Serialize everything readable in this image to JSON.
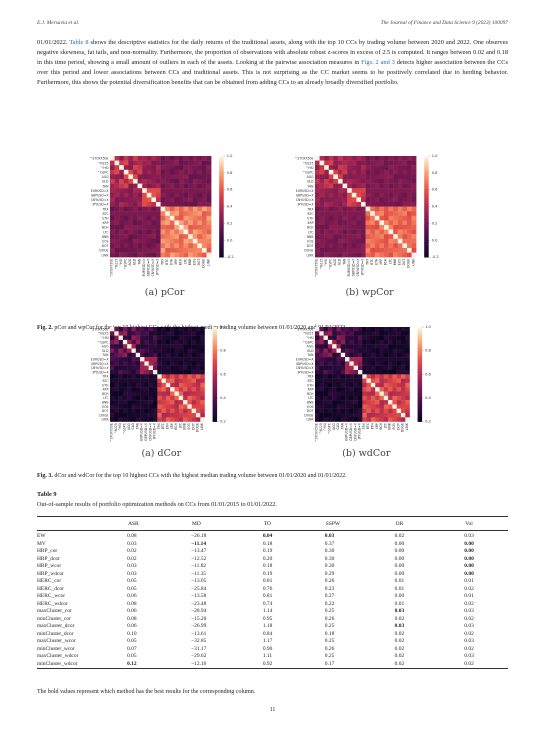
{
  "header": {
    "left": "E.J. Mersavia et al.",
    "right": "The Journal of Finance and Data Science 9 (2023) 100097"
  },
  "paragraph": {
    "p1": "01/01/2022. ",
    "link1": "Table 8",
    "p2": " shows the descriptive statistics for the daily returns of the traditional assets, along with the top 10 CCs by trading volume between 2020 and 2022. One observes negative skewness, fat tails, and non-normality. Furthermore, the proportion of observations with absolute robust z-scores in excess of 2.5 is computed. It ranges between 0.02 and 0.18 in this time period, showing a small amount of outliers in each of the assets. Looking at the pairwise association measures in ",
    "link2": "Figs. 2 and 3",
    "p3": " detects higher association between the CCs over this period and lower associations between CCs and traditional assets. This is not surprising as the CC market seems to be positively correlated due to herding behavior. Furthermore, this shows the potential diversification benefits that can be obtained from adding CCs to an already broadly diversified portfolio."
  },
  "heatmap_labels": [
    "^STOXX50E",
    "^N225",
    "^HSI",
    "^GSPC",
    "AGG",
    "GLD",
    "TAN",
    "EURUSD=X",
    "GBPUSD=X",
    "CNYUSD=X",
    "JPYUSD=X",
    "TRX",
    "BTC",
    "ETH",
    "XRP",
    "BCH",
    "LTC",
    "BNB",
    "EOS",
    "DOT",
    "DOGE",
    "LINK"
  ],
  "colorbars": {
    "pcor": [
      "1.0",
      "0.8",
      "0.6",
      "0.4",
      "0.2",
      "0.0",
      "-0.2"
    ],
    "wpcor": [
      "1.0",
      "0.8",
      "0.6",
      "0.4",
      "0.2",
      "0.0",
      "-0.2"
    ],
    "dcor": [
      "1.0",
      "0.8",
      "0.6",
      "0.4",
      "0.2"
    ],
    "wdcor": [
      "1.0",
      "0.8",
      "0.6",
      "0.4",
      "0.2"
    ]
  },
  "figures": {
    "fig2": {
      "panel_a": "(a) pCor",
      "panel_b": "(b) wpCor",
      "caption_label": "Fig. 2.",
      "caption_text": " pCor and wpCor for the top 10 highest CCs with the highest median trading volume between 01/01/2020 and 01/01/2022."
    },
    "fig3": {
      "panel_a": "(a) dCor",
      "panel_b": "(b) wdCor",
      "caption_label": "Fig. 3.",
      "caption_text": " dCor and wdCor for the top 10 highest CCs with the highest median trading volume between 01/01/2020 and 01/01/2022."
    }
  },
  "table": {
    "label": "Table 9",
    "description": "Out-of-sample results of portfolio optimization methods on CCs from 01/01/2015 to 01/01/2022.",
    "columns": [
      "",
      "ASR",
      "MD",
      "TO",
      "SSPW",
      "OR",
      "Vol"
    ],
    "rows": [
      [
        "EW",
        "0.08",
        "−26.18",
        "0.04",
        "0.03",
        "0.02",
        "0.03"
      ],
      [
        "MV",
        "0.03",
        "−11.14",
        "0.18",
        "0.37",
        "0.00",
        "0.00"
      ],
      [
        "HRP_cor",
        "0.02",
        "−13.47",
        "0.19",
        "0.30",
        "0.00",
        "0.00"
      ],
      [
        "HRP_dcor",
        "0.02",
        "−12.52",
        "0.20",
        "0.30",
        "0.00",
        "0.00"
      ],
      [
        "HRP_wcor",
        "0.03",
        "−11.82",
        "0.18",
        "0.30",
        "0.00",
        "0.00"
      ],
      [
        "HRP_wdcor",
        "0.03",
        "−11.35",
        "0.19",
        "0.29",
        "0.00",
        "0.00"
      ],
      [
        "HERC_cor",
        "0.05",
        "−13.05",
        "0.81",
        "0.26",
        "0.01",
        "0.01"
      ],
      [
        "HERC_dcor",
        "0.05",
        "−25.84",
        "0.76",
        "0.23",
        "0.01",
        "0.02"
      ],
      [
        "HERC_wcor",
        "0.06",
        "−13.58",
        "0.81",
        "0.27",
        "0.00",
        "0.01"
      ],
      [
        "HERC_wdcor",
        "0.08",
        "−23.48",
        "0.74",
        "0.22",
        "0.01",
        "0.02"
      ],
      [
        "maxCluster_cor",
        "0.06",
        "−28.94",
        "1.14",
        "0.25",
        "0.03",
        "0.03"
      ],
      [
        "minCluster_cor",
        "0.08",
        "−15.20",
        "0.95",
        "0.26",
        "0.02",
        "0.02"
      ],
      [
        "maxCluster_dcor",
        "0.06",
        "−26.99",
        "1.18",
        "0.25",
        "0.03",
        "0.03"
      ],
      [
        "minCluster_dcor",
        "0.10",
        "−13.61",
        "0.84",
        "0.18",
        "0.02",
        "0.02"
      ],
      [
        "maxCluster_wcor",
        "0.05",
        "−32.85",
        "1.17",
        "0.25",
        "0.02",
        "0.03"
      ],
      [
        "minCluster_wcor",
        "0.07",
        "−31.17",
        "0.90",
        "0.26",
        "0.02",
        "0.02"
      ],
      [
        "maxCluster_wdcor",
        "0.05",
        "−29.62",
        "1.11",
        "0.25",
        "0.02",
        "0.03"
      ],
      [
        "minCluster_wdcor",
        "0.12",
        "−12.16",
        "0.92",
        "0.17",
        "0.02",
        "0.02"
      ]
    ],
    "bold": [
      [
        0,
        3
      ],
      [
        0,
        4
      ],
      [
        1,
        2
      ],
      [
        1,
        6
      ],
      [
        2,
        6
      ],
      [
        3,
        6
      ],
      [
        4,
        6
      ],
      [
        5,
        6
      ],
      [
        10,
        5
      ],
      [
        12,
        5
      ],
      [
        17,
        1
      ]
    ],
    "note": "The bold values represent which method has the best results for the corresponding column."
  },
  "page_number": "11"
}
